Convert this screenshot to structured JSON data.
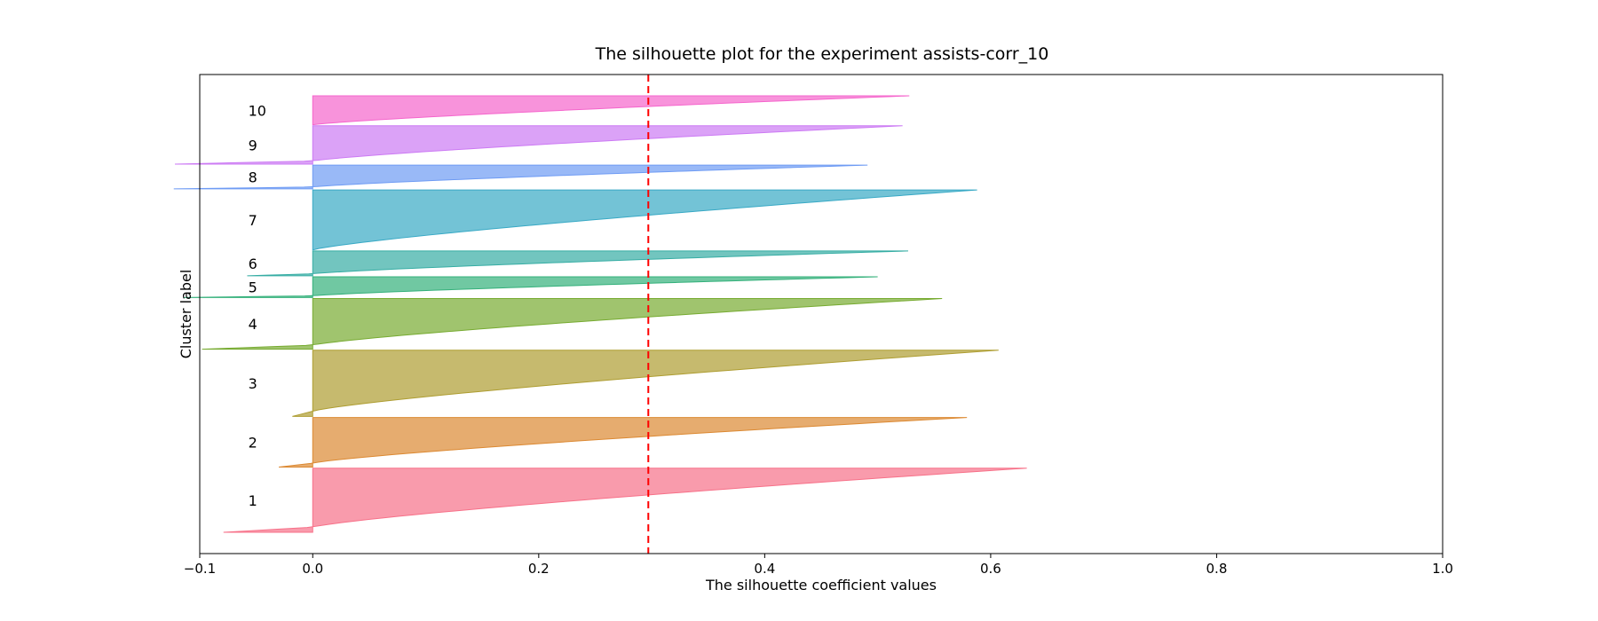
{
  "chart_data": {
    "type": "area",
    "title": "The silhouette plot for the experiment assists-corr_10",
    "xlabel": "The silhouette coefficient values",
    "ylabel": "Cluster label",
    "xlim": [
      -0.1,
      1.0
    ],
    "xticks": [
      {
        "value": -0.1,
        "label": "−0.1"
      },
      {
        "value": 0.0,
        "label": "0.0"
      },
      {
        "value": 0.2,
        "label": "0.2"
      },
      {
        "value": 0.4,
        "label": "0.4"
      },
      {
        "value": 0.6,
        "label": "0.6"
      },
      {
        "value": 0.8,
        "label": "0.8"
      },
      {
        "value": 1.0,
        "label": "1.0"
      }
    ],
    "average_silhouette": 0.297,
    "average_line_color": "#ff0000",
    "clusters": [
      {
        "label": "1",
        "size": 62,
        "max": 0.632,
        "min": -0.079,
        "color": "#f77189"
      },
      {
        "label": "2",
        "size": 48,
        "max": 0.579,
        "min": -0.03,
        "color": "#dc8932"
      },
      {
        "label": "3",
        "size": 64,
        "max": 0.607,
        "min": -0.018,
        "color": "#ae9d31"
      },
      {
        "label": "4",
        "size": 49,
        "max": 0.557,
        "min": -0.098,
        "color": "#77ab31"
      },
      {
        "label": "5",
        "size": 20,
        "max": 0.5,
        "min": -0.114,
        "color": "#33b07a"
      },
      {
        "label": "6",
        "size": 24,
        "max": 0.527,
        "min": -0.058,
        "color": "#36ada4"
      },
      {
        "label": "7",
        "size": 58,
        "max": 0.588,
        "min": 0.0,
        "color": "#38a9c5"
      },
      {
        "label": "8",
        "size": 23,
        "max": 0.491,
        "min": -0.123,
        "color": "#6e9bf4"
      },
      {
        "label": "9",
        "size": 37,
        "max": 0.522,
        "min": -0.122,
        "color": "#cc7af4"
      },
      {
        "label": "10",
        "size": 28,
        "max": 0.528,
        "min": 0.0,
        "color": "#f565cc"
      }
    ]
  }
}
